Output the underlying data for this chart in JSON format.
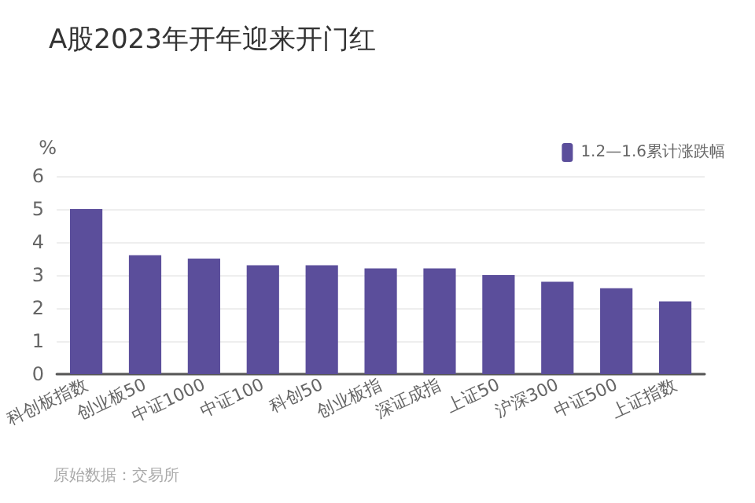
{
  "chart_data": {
    "type": "bar",
    "title": "A股2023年开年迎来开门红",
    "ylabel": "%",
    "categories": [
      "科创板指数",
      "创业板50",
      "中证1000",
      "中证100",
      "科创50",
      "创业板指",
      "深证成指",
      "上证50",
      "沪深300",
      "中证500",
      "上证指数"
    ],
    "series": [
      {
        "name": "1.2—1.6累计涨跌幅",
        "color": "#5b4e9b",
        "values": [
          5.0,
          3.6,
          3.5,
          3.3,
          3.3,
          3.2,
          3.2,
          3.0,
          2.8,
          2.6,
          2.2
        ]
      }
    ],
    "ylim": [
      0,
      6
    ],
    "yticks": [
      0,
      1,
      2,
      3,
      4,
      5,
      6
    ],
    "grid": "y",
    "legend": "top right",
    "annotations": [
      "原始数据：交易所"
    ]
  }
}
